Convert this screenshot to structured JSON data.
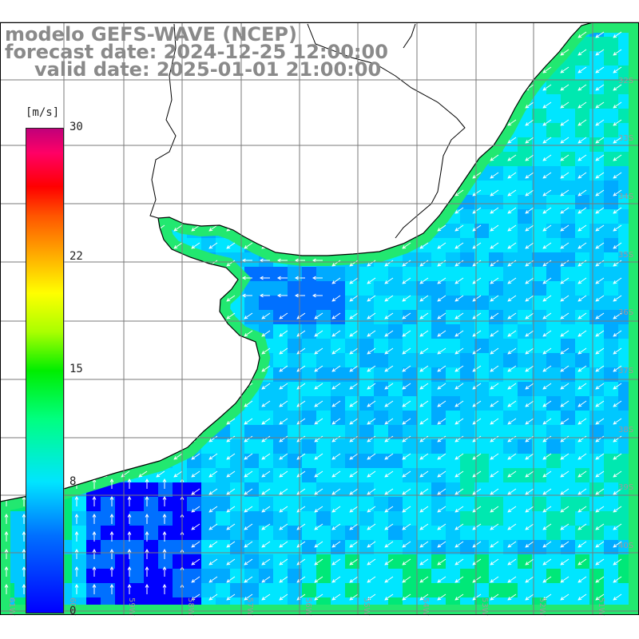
{
  "header": {
    "model": "modelo GEFS-WAVE (NCEP)",
    "forecast_date": "forecast date: 2024-12-25 12:00:00",
    "valid_date": "valid date: 2025-01-01 21:00:00"
  },
  "colorbar": {
    "unit": "[m/s]",
    "ticks": [
      "30",
      "22",
      "15",
      "8",
      "0"
    ],
    "tick_values": [
      30,
      22,
      15,
      8,
      0
    ],
    "min": 0,
    "max": 30,
    "colors": [
      "#0000ff",
      "#00aaff",
      "#00e5ff",
      "#00ff80",
      "#00ee00",
      "#aaff00",
      "#ffff00",
      "#ffaa00",
      "#ff5500",
      "#ff0000",
      "#ff0066",
      "#c0007a"
    ]
  },
  "map": {
    "lat_labels": [
      "32S",
      "33S",
      "34S",
      "35S",
      "36S",
      "37S",
      "38S",
      "39S",
      "40S"
    ],
    "lon_labels": [
      "61W",
      "60W",
      "59W",
      "58W",
      "57W",
      "56W",
      "55W",
      "54W",
      "53W",
      "52W",
      "51W"
    ],
    "field": "wind speed and direction",
    "ocean_colors": [
      "#00e6ff",
      "#00c8ff",
      "#00aaff",
      "#0070ff",
      "#0000ff",
      "#00e8b0",
      "#00e878"
    ],
    "coastline_color": "#000000",
    "land_color": "#ffffff",
    "grid_color": "#7a7a7a"
  }
}
